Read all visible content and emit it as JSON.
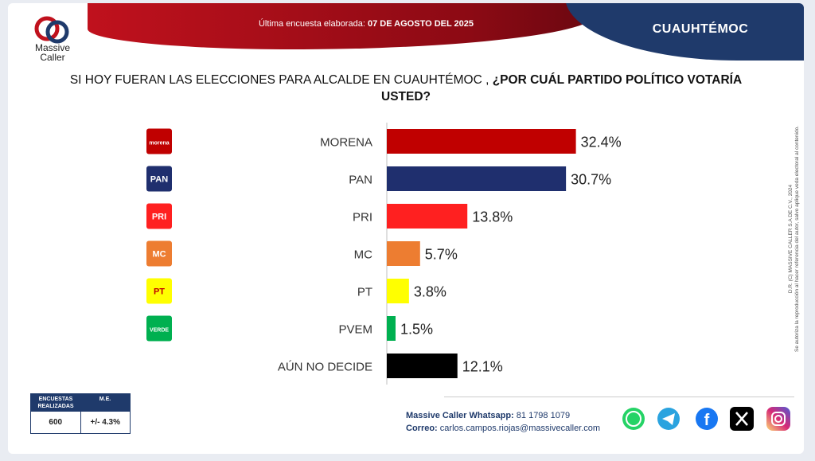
{
  "header": {
    "date_prefix": "Última encuesta elaborada:",
    "date_value": "07 DE AGOSTO DEL 2025",
    "place": "CUAUHTÉMOC",
    "brand_line1": "Massive",
    "brand_line2": "Caller"
  },
  "question": {
    "part1": "SI HOY FUERAN LAS ELECCIONES PARA ALCALDE EN CUAUHTÉMOC ,",
    "part2": "¿POR CUÁL PARTIDO POLÍTICO VOTARÍA USTED?"
  },
  "chart_data": {
    "type": "bar",
    "orientation": "horizontal",
    "categories": [
      "MORENA",
      "PAN",
      "PRI",
      "MC",
      "PT",
      "PVEM",
      "AÚN NO DECIDE"
    ],
    "values": [
      32.4,
      30.7,
      13.8,
      5.7,
      3.8,
      1.5,
      12.1
    ],
    "value_labels": [
      "32.4%",
      "30.7%",
      "13.8%",
      "5.7%",
      "3.8%",
      "1.5%",
      "12.1%"
    ],
    "colors": [
      "#c00000",
      "#1f2f6e",
      "#ff2020",
      "#ed7d31",
      "#ffff00",
      "#00b050",
      "#000000"
    ],
    "party_logos": [
      "morena",
      "PAN",
      "PRI",
      "MC",
      "PT",
      "VERDE"
    ],
    "xlim": [
      0,
      45
    ]
  },
  "copyright": {
    "line1": "D.R. (C) MASSIVE CALLER S.A DE C.V., 2024",
    "line2": "Se autoriza la reproducción al hacer referencia del autor, salvo aplique veda electoral al contenido."
  },
  "stats": {
    "header_left": "ENCUESTAS REALIZADAS",
    "header_right": "M.E.",
    "surveys": "600",
    "margin": "+/- 4.3%"
  },
  "contact": {
    "whatsapp_label": "Massive Caller Whatsapp:",
    "whatsapp_value": "81 1798 1079",
    "email_label": "Correo:",
    "email_value": "carlos.campos.riojas@massivecaller.com"
  },
  "social": [
    "whatsapp-icon",
    "telegram-icon",
    "facebook-icon",
    "x-icon",
    "instagram-icon"
  ]
}
